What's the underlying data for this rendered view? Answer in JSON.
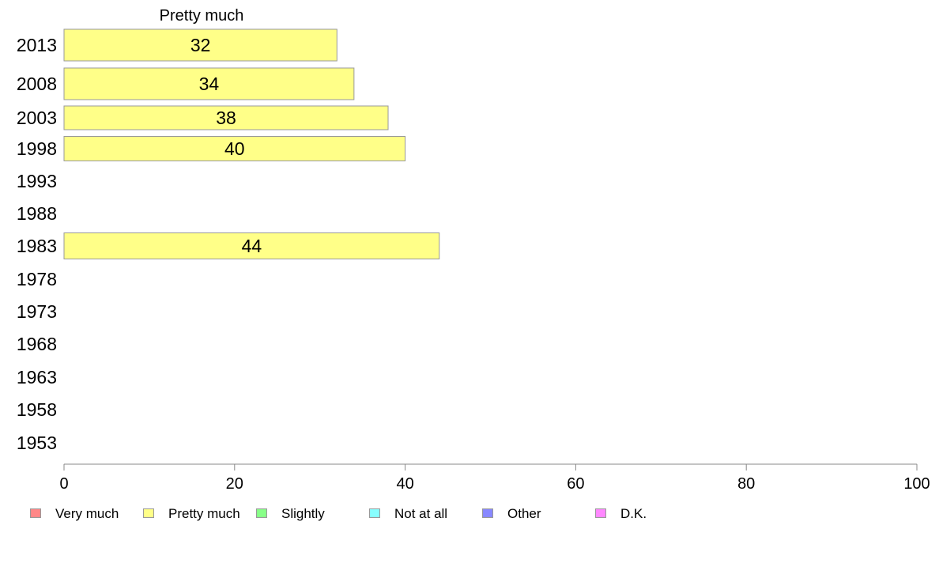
{
  "chart_data": {
    "type": "bar",
    "orientation": "horizontal",
    "panel_title": "Pretty much",
    "categories": [
      "2013",
      "2008",
      "2003",
      "1998",
      "1993",
      "1988",
      "1983",
      "1978",
      "1973",
      "1968",
      "1963",
      "1958",
      "1953"
    ],
    "series": [
      {
        "name": "Pretty much",
        "color": "#ffff88",
        "values": [
          32,
          34,
          38,
          40,
          null,
          null,
          44,
          null,
          null,
          null,
          null,
          null,
          null
        ],
        "labels": [
          "32",
          "34",
          "38",
          "40",
          "",
          "",
          "44",
          "",
          "",
          "",
          "",
          "",
          ""
        ]
      }
    ],
    "xlim": [
      0,
      100
    ],
    "xticks": [
      0,
      20,
      40,
      60,
      80,
      100
    ],
    "xtick_labels": [
      "0",
      "20",
      "40",
      "60",
      "80",
      "100"
    ],
    "grid": false,
    "legend_position": "bottom",
    "legend": [
      {
        "label": "Very much",
        "color": "#ff8888"
      },
      {
        "label": "Pretty much",
        "color": "#ffff88"
      },
      {
        "label": "Slightly",
        "color": "#88ff88"
      },
      {
        "label": "Not at all",
        "color": "#88ffff"
      },
      {
        "label": "Other",
        "color": "#8888ff"
      },
      {
        "label": "D.K.",
        "color": "#ff88ff"
      }
    ]
  }
}
